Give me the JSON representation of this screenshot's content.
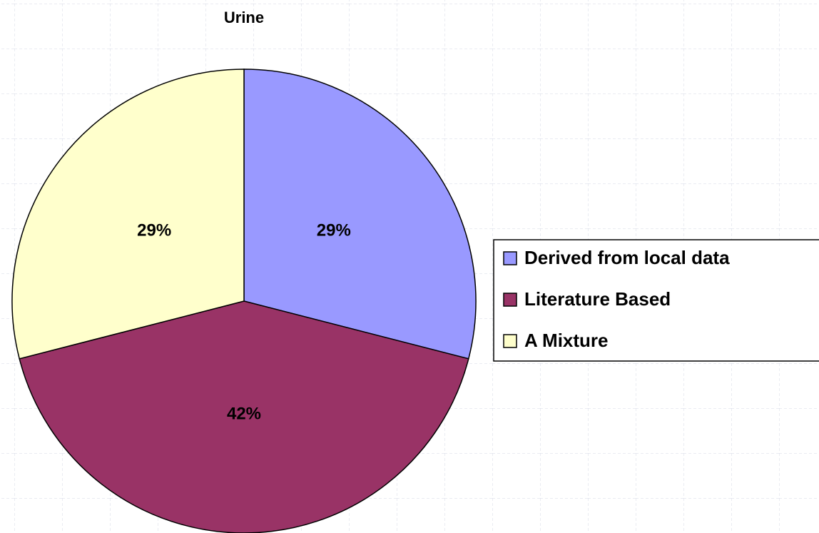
{
  "chart_data": {
    "type": "pie",
    "title": "Urine",
    "labels": [
      "Derived from local data",
      "Literature Based",
      "A Mixture"
    ],
    "values": [
      29,
      42,
      29
    ],
    "value_labels": [
      "29%",
      "42%",
      "29%"
    ],
    "colors": [
      "#9999ff",
      "#993366",
      "#ffffcc"
    ],
    "legend": "right"
  }
}
